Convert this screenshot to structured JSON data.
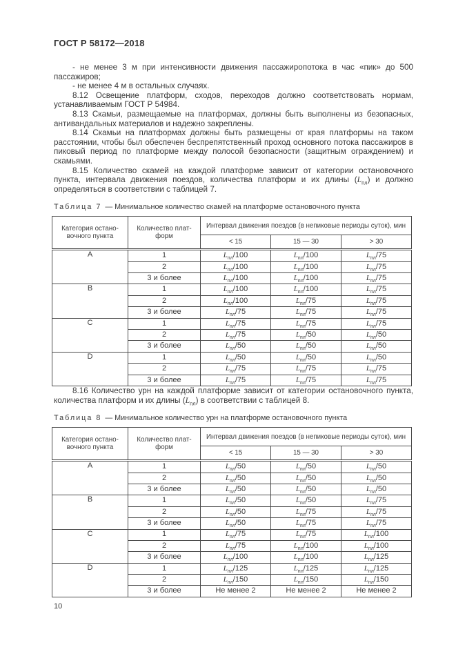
{
  "page": {
    "header": "ГОСТ Р 58172—2018",
    "page_number": "10",
    "ink_color": "#3a3a3a",
    "border_color": "#4a4a4a"
  },
  "paragraphs": [
    {
      "text": "- не менее 3 м при интенсивности движения пассажиропотока в час «пик» до 500 пассажиров;"
    },
    {
      "text": "- не менее 4 м в остальных случаях."
    },
    {
      "text": "8.12 Освещение платформ, сходов, переходов должно соответствовать нормам, устанавливаемым ГОСТ Р 54984."
    },
    {
      "text": "8.13 Скамьи, размещаемые на платформах, должны быть выполнены из безопасных, антивандальных материалов и надежно закреплены."
    },
    {
      "text": "8.14 Скамьи на платформах должны быть размещены от края платформы на таком расстоянии, чтобы был обеспечен беспрепятственный проход основного потока пассажиров в пиковый период по платформе между полосой безопасности (защитным ограждением) и скамьями."
    },
    {
      "text": "8.15 Количество скамей на каждой платформе зависит от категории остановочного пункта, интервала движения поездов, количества платформ и их длины (L_пл) и должно определяться в соответствии с таблицей 7."
    },
    {
      "text": "8.16 Количество урн на каждой платформе зависит от категории остановочного пункта, количества платформ и их длины (L_пл) в соответствии с таблицей 8."
    }
  ],
  "table7": {
    "caption_label": "Таблица 7",
    "caption_text": "— Минимальное количество скамей на платформе остановочного пункта",
    "header": {
      "col1": "Категория остано-\nвочного пункта",
      "col2": "Количество плат-\nформ",
      "interval": "Интервал движения поездов (в непиковые периоды суток), мин",
      "sub": [
        "< 15",
        "15 — 30",
        "> 30"
      ]
    },
    "groups": [
      {
        "category": "A",
        "rows": [
          {
            "platforms": "1",
            "values": [
              "L_пл/100",
              "L_пл/100",
              "L_пл/75"
            ]
          },
          {
            "platforms": "2",
            "values": [
              "L_пл/100",
              "L_пл/100",
              "L_пл/75"
            ]
          },
          {
            "platforms": "3 и более",
            "values": [
              "L_пл/100",
              "L_пл/100",
              "L_пл/75"
            ]
          }
        ]
      },
      {
        "category": "B",
        "rows": [
          {
            "platforms": "1",
            "values": [
              "L_пл/100",
              "L_пл/100",
              "L_пл/75"
            ]
          },
          {
            "platforms": "2",
            "values": [
              "L_пл/100",
              "L_пл/75",
              "L_пл/75"
            ]
          },
          {
            "platforms": "3 и более",
            "values": [
              "L_пл/75",
              "L_пл/75",
              "L_пл/75"
            ]
          }
        ]
      },
      {
        "category": "C",
        "rows": [
          {
            "platforms": "1",
            "values": [
              "L_пл/75",
              "L_пл/75",
              "L_пл/75"
            ]
          },
          {
            "platforms": "2",
            "values": [
              "L_пл/75",
              "L_пл/50",
              "L_пл/50"
            ]
          },
          {
            "platforms": "3 и более",
            "values": [
              "L_пл/50",
              "L_пл/50",
              "L_пл/50"
            ]
          }
        ]
      },
      {
        "category": "D",
        "rows": [
          {
            "platforms": "1",
            "values": [
              "L_пл/50",
              "L_пл/50",
              "L_пл/50"
            ]
          },
          {
            "platforms": "2",
            "values": [
              "L_пл/75",
              "L_пл/75",
              "L_пл/75"
            ]
          },
          {
            "platforms": "3 и более",
            "values": [
              "L_пл/75",
              "L_пл/75",
              "L_пл/75"
            ]
          }
        ]
      }
    ]
  },
  "table8": {
    "caption_label": "Таблица 8",
    "caption_text": "— Минимальное количество урн на платформе остановочного пункта",
    "header": {
      "col1": "Категория остано-\nвочного пункта",
      "col2": "Количество плат-\nформ",
      "interval": "Интервал движения поездов (в непиковые периоды суток), мин",
      "sub": [
        "< 15",
        "15 — 30",
        "> 30"
      ]
    },
    "groups": [
      {
        "category": "A",
        "rows": [
          {
            "platforms": "1",
            "values": [
              "L_пл/50",
              "L_пл/50",
              "L_пл/50"
            ]
          },
          {
            "platforms": "2",
            "values": [
              "L_пл/50",
              "L_пл/50",
              "L_пл/50"
            ]
          },
          {
            "platforms": "3 и более",
            "values": [
              "L_пл/50",
              "L_пл/50",
              "L_пл/50"
            ]
          }
        ]
      },
      {
        "category": "B",
        "rows": [
          {
            "platforms": "1",
            "values": [
              "L_пл/50",
              "L_пл/50",
              "L_пл/75"
            ]
          },
          {
            "platforms": "2",
            "values": [
              "L_пл/50",
              "L_пл/75",
              "L_пл/75"
            ]
          },
          {
            "platforms": "3 и более",
            "values": [
              "L_пл/50",
              "L_пл/75",
              "L_пл/75"
            ]
          }
        ]
      },
      {
        "category": "C",
        "rows": [
          {
            "platforms": "1",
            "values": [
              "L_пл/75",
              "L_пл/75",
              "L_пл/100"
            ]
          },
          {
            "platforms": "2",
            "values": [
              "L_пл/75",
              "L_пл/100",
              "L_пл/100"
            ]
          },
          {
            "platforms": "3 и более",
            "values": [
              "L_пл/100",
              "L_пл/100",
              "L_пл/125"
            ]
          }
        ]
      },
      {
        "category": "D",
        "rows": [
          {
            "platforms": "1",
            "values": [
              "L_пл/125",
              "L_пл/125",
              "L_пл/125"
            ]
          },
          {
            "platforms": "2",
            "values": [
              "L_пл/150",
              "L_пл/150",
              "L_пл/150"
            ]
          },
          {
            "platforms": "3 и более",
            "values": [
              "Не менее 2",
              "Не менее 2",
              "Не менее 2"
            ]
          }
        ]
      }
    ]
  }
}
